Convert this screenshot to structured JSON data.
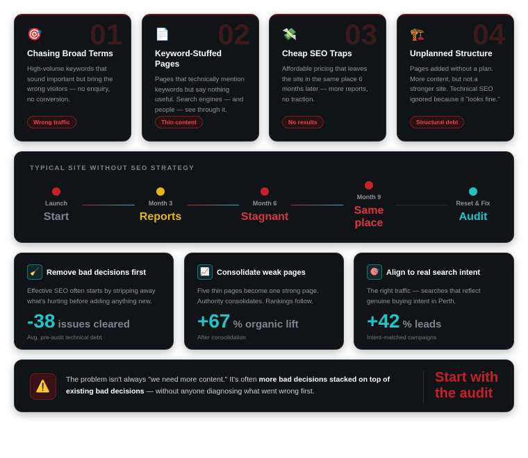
{
  "cards": [
    {
      "number": "01",
      "title": "Chasing Broad Terms",
      "text": "High-volume keywords that sound important but bring the wrong visitors — no enquiry, no conversion.",
      "tag": "Wrong traffic"
    },
    {
      "number": "02",
      "title": "Keyword-Stuffed Pages",
      "text": "Pages that technically mention keywords but say nothing useful. Search engines — and people — see through it.",
      "tag": "Thin content"
    },
    {
      "number": "03",
      "title": "Cheap SEO Traps",
      "text": "Affordable pricing that leaves the site in the same place 6 months later — more reports, no traction.",
      "tag": "No results"
    },
    {
      "number": "04",
      "title": "Unplanned Structure",
      "text": "Pages added without a plan. More content, but not a stronger site. Technical SEO ignored because it \"looks fine.\"",
      "tag": "Structural debt"
    }
  ],
  "timeline": {
    "label": "TYPICAL SITE WITHOUT SEO STRATEGY",
    "steps": [
      {
        "label": "Launch",
        "title": "Start"
      },
      {
        "label": "Month 3",
        "title": "Reports"
      },
      {
        "label": "Month 6",
        "title": "Stagnant"
      },
      {
        "label": "Month 9",
        "title": "Same place"
      },
      {
        "label": "Reset & Fix",
        "title": "Audit"
      }
    ]
  },
  "stats": [
    {
      "title": "Remove bad decisions first",
      "text": "Effective SEO often starts by stripping away what's hurting before adding anything new.",
      "value": "-38",
      "unit": "issues cleared",
      "note": "Avg. pre-audit technical debt"
    },
    {
      "title": "Consolidate weak pages",
      "text": "Five thin pages become one strong page. Authority consolidates. Rankings follow.",
      "value": "+67",
      "unit": "% organic lift",
      "note": "After consolidation"
    },
    {
      "title": "Align to real search intent",
      "text": "The right traffic — searches that reflect genuine buying intent in Perth.",
      "value": "+42",
      "unit": "% leads",
      "note": "Intent-matched campaigns"
    }
  ],
  "banner": {
    "text_before": "The problem isn't always \"we need more content.\" It's often ",
    "text_bold": "more bad decisions stacked on top of existing bad decisions",
    "text_after": " — without anyone diagnosing what went wrong first.",
    "cta": "Start with the audit"
  }
}
